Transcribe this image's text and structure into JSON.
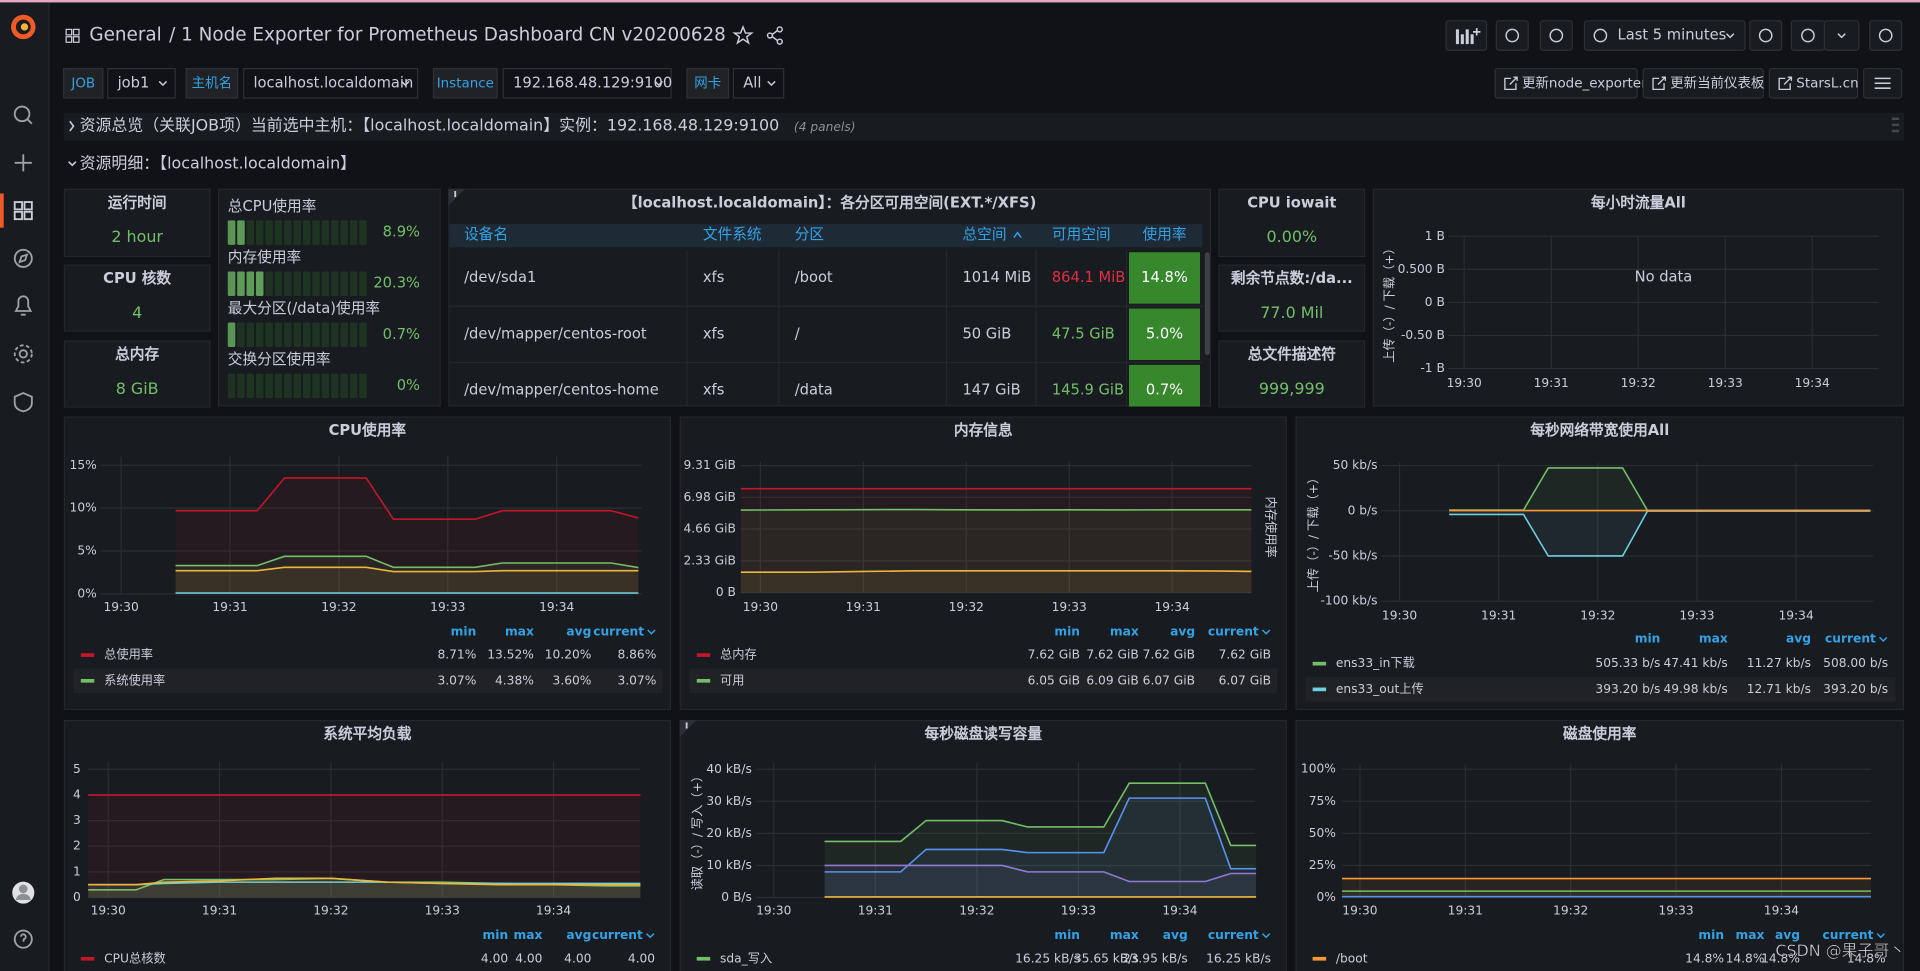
{
  "header": {
    "root": "General",
    "title": "/ 1 Node Exporter for Prometheus Dashboard CN v20200628",
    "time_range": "Last 5 minutes"
  },
  "variables": [
    {
      "label": "JOB",
      "value": "job1"
    },
    {
      "label": "主机名",
      "value": "localhost.localdomain"
    },
    {
      "label": "Instance",
      "value": "192.168.48.129:9100"
    },
    {
      "label": "网卡",
      "value": "All"
    }
  ],
  "links": [
    "更新node_exporter",
    "更新当前仪表板",
    "StarsL.cn"
  ],
  "rows": [
    {
      "title": "资源总览（关联JOB项）当前选中主机：【localhost.localdomain】实例：192.168.48.129:9100",
      "note": "(4 panels)"
    },
    {
      "title": "资源明细：【localhost.localdomain】"
    }
  ],
  "stats": [
    {
      "title": "运行时间",
      "value": "2 hour"
    },
    {
      "title": "CPU 核数",
      "value": "4"
    },
    {
      "title": "总内存",
      "value": "8 GiB"
    },
    {
      "title": "CPU iowait",
      "value": "0.00%"
    },
    {
      "title": "剩余节点数:/da...",
      "value": "77.0 Mil"
    },
    {
      "title": "总文件描述符",
      "value": "999,999"
    }
  ],
  "gauges": [
    {
      "name": "总CPU使用率",
      "value": 8.9,
      "label": "8.9%"
    },
    {
      "name": "内存使用率",
      "value": 20.3,
      "label": "20.3%"
    },
    {
      "name": "最大分区(/data)使用率",
      "value": 0.7,
      "label": "0.7%"
    },
    {
      "name": "交换分区使用率",
      "value": 0,
      "label": "0%"
    }
  ],
  "table": {
    "title": "【localhost.localdomain】：各分区可用空间(EXT.*/XFS)",
    "columns": [
      "设备名",
      "文件系统",
      "分区",
      "总空间",
      "可用空间",
      "使用率"
    ],
    "rows": [
      [
        "/dev/sda1",
        "xfs",
        "/boot",
        "1014 MiB",
        "864.1 MiB",
        "14.8%"
      ],
      [
        "/dev/mapper/centos-root",
        "xfs",
        "/",
        "50 GiB",
        "47.5 GiB",
        "5.0%"
      ],
      [
        "/dev/mapper/centos-home",
        "xfs",
        "/data",
        "147 GiB",
        "145.9 GiB",
        "0.7%"
      ]
    ],
    "available_colors": [
      "#e02f44",
      "#73bf69",
      "#73bf69"
    ],
    "usage_color": "#37872d"
  },
  "charts": [
    {
      "type": "line",
      "title": "CPU使用率",
      "grid": true,
      "fill_opacity": 0.08,
      "xlim": [
        -0.19,
        4.78
      ],
      "xticks": [
        {
          "value": 0,
          "label": "19:30"
        },
        {
          "value": 1,
          "label": "19:31"
        },
        {
          "value": 2,
          "label": "19:32"
        },
        {
          "value": 3,
          "label": "19:33"
        },
        {
          "value": 4,
          "label": "19:34"
        }
      ],
      "ylim": [
        0,
        16
      ],
      "yticks": [
        {
          "value": 0,
          "label": "0%"
        },
        {
          "value": 5,
          "label": "5%"
        },
        {
          "value": 10,
          "label": "10%"
        },
        {
          "value": 15,
          "label": "15%"
        }
      ],
      "x": [
        0.5,
        0.75,
        1,
        1.25,
        1.5,
        1.75,
        2,
        2.25,
        2.5,
        2.75,
        3,
        3.25,
        3.5,
        3.75,
        4,
        4.25,
        4.5,
        4.75
      ],
      "legend_columns": [
        "min",
        "max",
        "avg",
        "current"
      ],
      "series": [
        {
          "name": "总使用率",
          "color": "#c4162a",
          "values": [
            9.7,
            9.7,
            9.7,
            9.7,
            13.52,
            13.52,
            13.52,
            13.52,
            8.71,
            8.71,
            8.71,
            8.71,
            9.7,
            9.7,
            9.7,
            9.7,
            9.7,
            8.86
          ],
          "stats": [
            "8.71%",
            "13.52%",
            "10.20%",
            "8.86%"
          ]
        },
        {
          "name": "系统使用率",
          "color": "#73bf69",
          "values": [
            3.3,
            3.3,
            3.3,
            3.3,
            4.38,
            4.38,
            4.38,
            4.38,
            3.1,
            3.1,
            3.1,
            3.1,
            3.6,
            3.6,
            3.6,
            3.6,
            3.6,
            3.07
          ],
          "stats": [
            "3.07%",
            "4.38%",
            "3.60%",
            "3.07%"
          ]
        },
        {
          "color": "#eab839",
          "values": [
            2.7,
            2.7,
            2.7,
            2.7,
            3.1,
            3.1,
            3.1,
            3.1,
            2.6,
            2.6,
            2.6,
            2.6,
            2.7,
            2.7,
            2.7,
            2.7,
            2.7,
            2.7
          ]
        },
        {
          "color": "#6ed0e0",
          "values": [
            0.1,
            0.1,
            0.1,
            0.1,
            0.1,
            0.1,
            0.1,
            0.1,
            0.1,
            0.1,
            0.1,
            0.1,
            0.1,
            0.1,
            0.1,
            0.1,
            0.1,
            0.1
          ]
        }
      ]
    },
    {
      "type": "line",
      "title": "内存信息",
      "grid": true,
      "fill_opacity": 0.08,
      "y2_label": "内存使用率",
      "xlim": [
        -0.19,
        4.77
      ],
      "xticks": [
        {
          "value": 0,
          "label": "19:30"
        },
        {
          "value": 1,
          "label": "19:31"
        },
        {
          "value": 2,
          "label": "19:32"
        },
        {
          "value": 3,
          "label": "19:33"
        },
        {
          "value": 4,
          "label": "19:34"
        }
      ],
      "ylim": [
        0,
        9.6
      ],
      "yticks": [
        {
          "value": 0,
          "label": "0 B"
        },
        {
          "value": 2.33,
          "label": "2.33 GiB"
        },
        {
          "value": 4.66,
          "label": "4.66 GiB"
        },
        {
          "value": 6.98,
          "label": "6.98 GiB"
        },
        {
          "value": 9.31,
          "label": "9.31 GiB"
        }
      ],
      "x": [
        -0.19,
        0.5,
        1,
        1.5,
        2,
        2.5,
        3,
        3.5,
        4,
        4.5,
        4.77
      ],
      "legend_columns": [
        "min",
        "max",
        "avg",
        "current"
      ],
      "series": [
        {
          "name": "总内存",
          "color": "#c4162a",
          "values": [
            7.62,
            7.62,
            7.62,
            7.62,
            7.62,
            7.62,
            7.62,
            7.62,
            7.62,
            7.62,
            7.62
          ],
          "stats": [
            "7.62 GiB",
            "7.62 GiB",
            "7.62 GiB",
            "7.62 GiB"
          ]
        },
        {
          "name": "可用",
          "color": "#73bf69",
          "values": [
            6.05,
            6.07,
            6.08,
            6.09,
            6.07,
            6.06,
            6.07,
            6.06,
            6.07,
            6.07,
            6.07
          ],
          "stats": [
            "6.05 GiB",
            "6.09 GiB",
            "6.07 GiB",
            "6.07 GiB"
          ]
        },
        {
          "color": "#eab839",
          "values": [
            1.5,
            1.5,
            1.55,
            1.6,
            1.6,
            1.6,
            1.6,
            1.6,
            1.6,
            1.58,
            1.55
          ]
        }
      ]
    },
    {
      "type": "line",
      "title": "每秒网络带宽使用All",
      "grid": true,
      "fill_opacity": 0.08,
      "y_label": "上传（-）/ 下载（+）",
      "xlim": [
        -0.185,
        4.78
      ],
      "xticks": [
        {
          "value": 0,
          "label": "19:30"
        },
        {
          "value": 1,
          "label": "19:31"
        },
        {
          "value": 2,
          "label": "19:32"
        },
        {
          "value": 3,
          "label": "19:33"
        },
        {
          "value": 4,
          "label": "19:34"
        }
      ],
      "ylim": [
        -100,
        53
      ],
      "yticks": [
        {
          "value": -100,
          "label": "-100 kb/s"
        },
        {
          "value": -50,
          "label": "-50 kb/s"
        },
        {
          "value": 0,
          "label": "0 b/s"
        },
        {
          "value": 50,
          "label": "50 kb/s"
        }
      ],
      "x": [
        0.5,
        0.75,
        1,
        1.25,
        1.5,
        1.75,
        2,
        2.25,
        2.5,
        2.75,
        3,
        3.25,
        3.5,
        3.75,
        4,
        4.25,
        4.5,
        4.75
      ],
      "legend_columns": [
        "min",
        "max",
        "avg",
        "current"
      ],
      "series": [
        {
          "name": "ens33_in下载",
          "color": "#73bf69",
          "values": [
            0.8,
            0.8,
            0.8,
            0.8,
            47.41,
            47.41,
            47.41,
            47.41,
            0.5,
            0.5,
            0.5,
            0.5,
            0.5,
            0.5,
            0.5,
            0.5,
            0.5,
            0.51
          ],
          "stats": [
            "505.33 b/s",
            "47.41 kb/s",
            "11.27 kb/s",
            "508.00 b/s"
          ]
        },
        {
          "name": "ens33_out上传",
          "color": "#6ed0e0",
          "values": [
            -4,
            -4,
            -4,
            -4,
            -49.98,
            -49.98,
            -49.98,
            -49.98,
            -0.4,
            -0.4,
            -0.4,
            -0.4,
            -0.4,
            -0.4,
            -0.4,
            -0.4,
            -0.4,
            -0.39
          ],
          "stats": [
            "393.20 b/s",
            "49.98 kb/s",
            "12.71 kb/s",
            "393.20 b/s"
          ]
        },
        {
          "color": "#ff9830",
          "values": [
            0.2,
            0.2,
            0.2,
            0.2,
            0.2,
            0.2,
            0.2,
            0.2,
            0.2,
            0.2,
            0.2,
            0.2,
            0.2,
            0.2,
            0.2,
            0.2,
            0.2,
            0.2
          ]
        }
      ]
    },
    {
      "type": "line",
      "title": "每小时流量All",
      "grid": true,
      "fill_opacity": 0.08,
      "y_label": "上传（-）/ 下载（+）",
      "message": "No data",
      "xlim": [
        -0.18,
        4.76
      ],
      "xticks": [
        {
          "value": 0,
          "label": "19:30"
        },
        {
          "value": 1,
          "label": "19:31"
        },
        {
          "value": 2,
          "label": "19:32"
        },
        {
          "value": 3,
          "label": "19:33"
        },
        {
          "value": 4,
          "label": "19:34"
        }
      ],
      "ylim": [
        -1,
        1
      ],
      "yticks": [
        {
          "value": -1,
          "label": "-1 B"
        },
        {
          "value": -0.5,
          "label": "-0.50 B"
        },
        {
          "value": 0,
          "label": "0 B"
        },
        {
          "value": 0.5,
          "label": "0.500 B"
        },
        {
          "value": 1,
          "label": "1 B"
        }
      ],
      "series": []
    },
    {
      "type": "line",
      "title": "系统平均负载",
      "grid": true,
      "fill_opacity": 0.08,
      "xlim": [
        -0.18,
        4.78
      ],
      "xticks": [
        {
          "value": 0,
          "label": "19:30"
        },
        {
          "value": 1,
          "label": "19:31"
        },
        {
          "value": 2,
          "label": "19:32"
        },
        {
          "value": 3,
          "label": "19:33"
        },
        {
          "value": 4,
          "label": "19:34"
        }
      ],
      "ylim": [
        0,
        5.3
      ],
      "yticks": [
        0,
        1,
        2,
        3,
        4,
        5
      ],
      "x": [
        -0.18,
        0.25,
        0.5,
        1,
        1.5,
        2,
        2.5,
        3,
        3.5,
        4,
        4.5,
        4.78
      ],
      "legend_columns": [
        "min",
        "max",
        "avg",
        "current"
      ],
      "series": [
        {
          "name": "CPU总核数",
          "color": "#c4162a",
          "values": [
            4,
            4,
            4,
            4,
            4,
            4,
            4,
            4,
            4,
            4,
            4,
            4
          ],
          "stats": [
            "4.00",
            "4.00",
            "4.00",
            "4.00"
          ]
        },
        {
          "color": "#73bf69",
          "values": [
            0.3,
            0.3,
            0.7,
            0.7,
            0.7,
            0.75,
            0.6,
            0.6,
            0.55,
            0.5,
            0.45,
            0.45
          ]
        },
        {
          "color": "#6ed0e0",
          "values": [
            0.5,
            0.5,
            0.55,
            0.6,
            0.6,
            0.6,
            0.6,
            0.55,
            0.55,
            0.55,
            0.55,
            0.55
          ]
        },
        {
          "color": "#eab839",
          "values": [
            0.5,
            0.5,
            0.6,
            0.65,
            0.75,
            0.75,
            0.6,
            0.55,
            0.5,
            0.5,
            0.5,
            0.5
          ]
        }
      ]
    },
    {
      "type": "line",
      "title": "每秒磁盘读写容量",
      "grid": true,
      "fill_opacity": 0.08,
      "y_label": "读取（-）/ 写入（+）",
      "xlim": [
        -0.18,
        4.74
      ],
      "xticks": [
        {
          "value": 0,
          "label": "19:30"
        },
        {
          "value": 1,
          "label": "19:31"
        },
        {
          "value": 2,
          "label": "19:32"
        },
        {
          "value": 3,
          "label": "19:33"
        },
        {
          "value": 4,
          "label": "19:34"
        }
      ],
      "ylim": [
        0,
        42
      ],
      "yticks": [
        {
          "value": 0,
          "label": "0 B/s"
        },
        {
          "value": 10,
          "label": "10 kB/s"
        },
        {
          "value": 20,
          "label": "20 kB/s"
        },
        {
          "value": 30,
          "label": "30 kB/s"
        },
        {
          "value": 40,
          "label": "40 kB/s"
        }
      ],
      "x": [
        0.5,
        0.75,
        1,
        1.25,
        1.5,
        1.75,
        2,
        2.25,
        2.5,
        2.75,
        3,
        3.25,
        3.5,
        3.75,
        4,
        4.25,
        4.5,
        4.75
      ],
      "legend_columns": [
        "min",
        "max",
        "avg",
        "current"
      ],
      "series": [
        {
          "name": "sda_写入",
          "color": "#73bf69",
          "values": [
            17.5,
            17.5,
            17.5,
            17.5,
            24,
            24,
            24,
            24,
            22,
            22,
            22,
            22,
            35.65,
            35.65,
            35.65,
            35.65,
            16.25,
            16.25
          ],
          "stats": [
            "16.25 kB/s",
            "35.65 kB/s",
            "23.95 kB/s",
            "16.25 kB/s"
          ]
        },
        {
          "color": "#5794f2",
          "values": [
            8,
            8,
            8,
            8,
            15,
            15,
            15,
            15,
            14,
            14,
            14,
            14,
            31,
            31,
            31,
            31,
            9,
            9
          ]
        },
        {
          "color": "#8f7bd6",
          "values": [
            10,
            10,
            10,
            10,
            10,
            10,
            10,
            10,
            8,
            8,
            8,
            8,
            5,
            5,
            5,
            5,
            7.5,
            7.5
          ]
        },
        {
          "color": "#eab839",
          "values": [
            0.2,
            0.2,
            0.2,
            0.2,
            0.2,
            0.2,
            0.2,
            0.2,
            0.2,
            0.2,
            0.2,
            0.2,
            0.2,
            0.2,
            0.2,
            0.2,
            0.2,
            0.2
          ]
        }
      ]
    },
    {
      "type": "line",
      "title": "磁盘使用率",
      "grid": true,
      "fill_opacity": 0.08,
      "xlim": [
        -0.17,
        4.85
      ],
      "xticks": [
        {
          "value": 0,
          "label": "19:30"
        },
        {
          "value": 1,
          "label": "19:31"
        },
        {
          "value": 2,
          "label": "19:32"
        },
        {
          "value": 3,
          "label": "19:33"
        },
        {
          "value": 4,
          "label": "19:34"
        }
      ],
      "ylim": [
        0,
        104
      ],
      "yticks": [
        {
          "value": 0,
          "label": "0%"
        },
        {
          "value": 25,
          "label": "25%"
        },
        {
          "value": 50,
          "label": "50%"
        },
        {
          "value": 75,
          "label": "75%"
        },
        {
          "value": 100,
          "label": "100%"
        }
      ],
      "x": [
        -0.17,
        1,
        2,
        3,
        4,
        4.85
      ],
      "legend_columns": [
        "min",
        "max",
        "avg",
        "current"
      ],
      "series": [
        {
          "name": "/boot",
          "color": "#ff9830",
          "values": [
            14.8,
            14.8,
            14.8,
            14.8,
            14.8,
            14.8
          ],
          "stats": [
            "14.8%",
            "14.8%",
            "14.8%",
            "14.8%"
          ]
        },
        {
          "color": "#73bf69",
          "values": [
            5,
            5,
            5,
            5,
            5,
            5
          ]
        },
        {
          "color": "#5794f2",
          "values": [
            0.7,
            0.7,
            0.7,
            0.7,
            0.7,
            0.7
          ]
        }
      ]
    }
  ],
  "watermark": "CSDN @果子哥丶"
}
